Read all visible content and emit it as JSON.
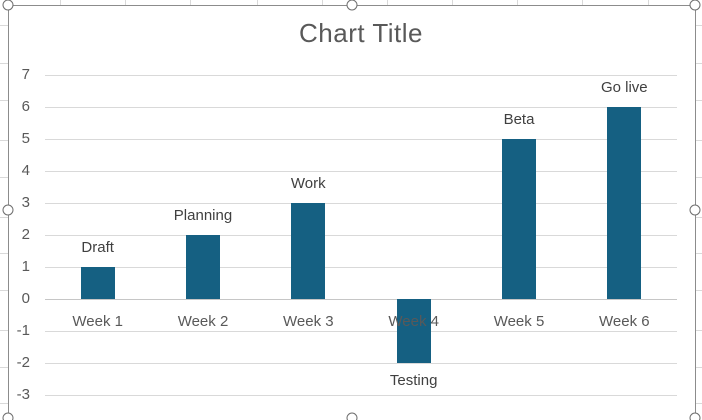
{
  "chart_data": {
    "type": "bar",
    "title": "Chart Title",
    "categories": [
      "Week 1",
      "Week 2",
      "Week 3",
      "Week 4",
      "Week 5",
      "Week 6"
    ],
    "values": [
      1,
      2,
      3,
      -2,
      5,
      6
    ],
    "point_labels": [
      "Draft",
      "Planning",
      "Work",
      "Testing",
      "Beta",
      "Go live"
    ],
    "y_ticks": [
      7,
      6,
      5,
      4,
      3,
      2,
      1,
      0,
      -1,
      -2,
      -3
    ],
    "ylim": [
      -3,
      7
    ],
    "xlabel": "",
    "ylabel": "",
    "grid": true,
    "legend": false,
    "series_name": "",
    "colors": {
      "bar": "#156082",
      "axis_text": "#595959",
      "data_label_text": "#404040",
      "gridline": "#d9d9d9",
      "zero_axis_line": "#c6c6c6",
      "selection_border": "#8c8c8c",
      "title_text": "#595959"
    }
  }
}
